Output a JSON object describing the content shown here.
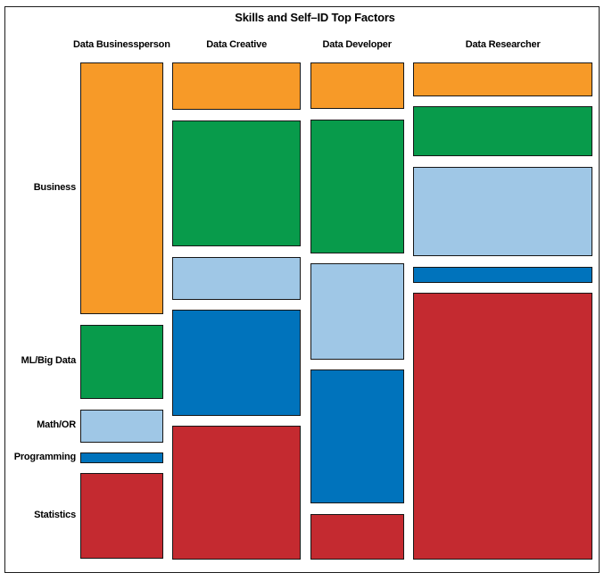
{
  "title": "Skills and Self–ID Top Factors",
  "colors": {
    "background": "#ffffff",
    "border": "#1c1c1c",
    "business": "#F79A28",
    "ml_big_data": "#089B4B",
    "math_or": "#9FC7E6",
    "programming": "#0073BC",
    "statistics": "#C42A30"
  },
  "chart_data": {
    "type": "mosaic",
    "title": "Skills and Self–ID Top Factors",
    "row_categories": [
      "Business",
      "ML/Big Data",
      "Math/OR",
      "Programming",
      "Statistics"
    ],
    "row_colors": [
      "#F79A28",
      "#089B4B",
      "#9FC7E6",
      "#0073BC",
      "#C42A30"
    ],
    "legend": "none",
    "grid": false,
    "columns": [
      {
        "label": "Data Businessperson",
        "width_pct": 17.1,
        "segments_pct": [
          55.2,
          16.4,
          7.2,
          2.3,
          18.8
        ]
      },
      {
        "label": "Data Creative",
        "width_pct": 26.5,
        "segments_pct": [
          10.4,
          27.7,
          9.4,
          23.2,
          29.3
        ]
      },
      {
        "label": "Data Developer",
        "width_pct": 19.4,
        "segments_pct": [
          10.2,
          29.4,
          21.0,
          29.4,
          10.0
        ]
      },
      {
        "label": "Data Researcher",
        "width_pct": 37.0,
        "segments_pct": [
          7.4,
          10.9,
          19.7,
          3.5,
          58.5
        ]
      }
    ]
  }
}
